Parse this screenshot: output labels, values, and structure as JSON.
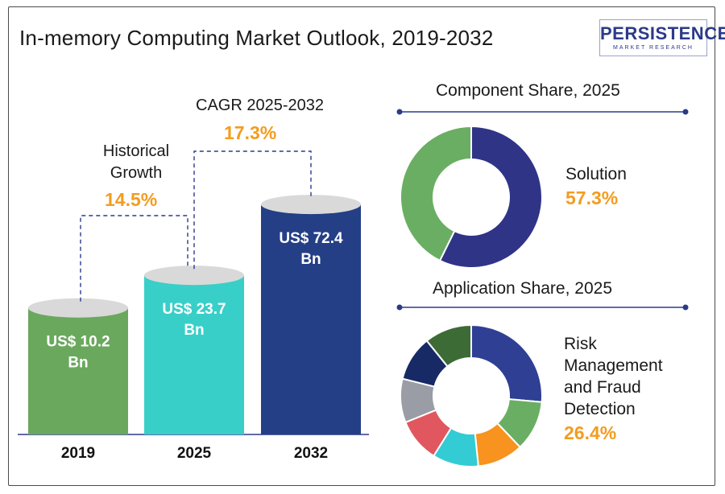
{
  "title": "In-memory Computing Market Outlook, 2019-2032",
  "logo": {
    "name": "PERSISTENCE",
    "subtitle": "MARKET RESEARCH"
  },
  "colors": {
    "accent": "#f39c1f",
    "bar_2019": "#6aa85e",
    "bar_2025": "#38cfc8",
    "bar_2032": "#243f86",
    "bar_top": "#d9d9d9",
    "dashed": "#2b3a8a",
    "axis": "#2b3a8a"
  },
  "growth": {
    "historical": {
      "label_line1": "Historical",
      "label_line2": "Growth",
      "value": "14.5%"
    },
    "forecast": {
      "label": "CAGR 2025-2032",
      "value": "17.3%"
    }
  },
  "chart_data": [
    {
      "type": "bar",
      "title": "",
      "categories": [
        "2019",
        "2025",
        "2032"
      ],
      "values": [
        10.2,
        23.7,
        72.4
      ],
      "value_labels": [
        "US$ 10.2 Bn",
        "US$ 23.7 Bn",
        "US$ 72.4 Bn"
      ],
      "unit": "US$ Bn"
    },
    {
      "type": "pie",
      "title": "Component Share, 2025",
      "slices": [
        {
          "name": "Solution",
          "value": 57.3,
          "color": "#2f3487"
        },
        {
          "name": "",
          "value": 42.7,
          "color": "#6aae63"
        }
      ],
      "highlight": {
        "label": "Solution",
        "value": "57.3%"
      }
    },
    {
      "type": "pie",
      "title": "Application Share, 2025",
      "slices": [
        {
          "name": "Risk Management and Fraud Detection",
          "value": 26.4,
          "color": "#2f3f94"
        },
        {
          "name": "",
          "value": 11.5,
          "color": "#6aae63"
        },
        {
          "name": "",
          "value": 10.5,
          "color": "#f7931e"
        },
        {
          "name": "",
          "value": 10.5,
          "color": "#33cbd4"
        },
        {
          "name": "",
          "value": 10.0,
          "color": "#e0575f"
        },
        {
          "name": "",
          "value": 10.0,
          "color": "#9a9da6"
        },
        {
          "name": "",
          "value": 10.3,
          "color": "#172a66"
        },
        {
          "name": "",
          "value": 10.8,
          "color": "#3d6b36"
        }
      ],
      "highlight": {
        "label_lines": [
          "Risk",
          "Management",
          "and Fraud",
          "Detection"
        ],
        "value": "26.4%"
      }
    }
  ]
}
